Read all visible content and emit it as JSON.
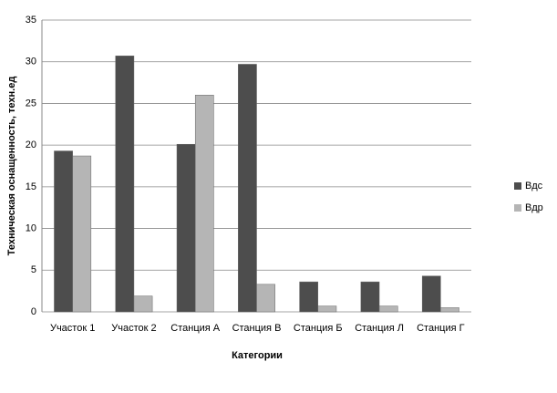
{
  "chart_data": {
    "type": "bar",
    "x_label": "Категории",
    "y_label": "Техническая оснащенность, техн.ед",
    "categories": [
      "Участок 1",
      "Участок 2",
      "Станция А",
      "Станция В",
      "Станция Б",
      "Станция Л",
      "Станция Г"
    ],
    "series": [
      {
        "name": "Вдс",
        "color": "#4d4d4d",
        "values": [
          19.3,
          30.7,
          20.1,
          29.7,
          3.6,
          3.6,
          4.3
        ]
      },
      {
        "name": "Вдр",
        "color": "#b5b5b5",
        "values": [
          18.7,
          1.9,
          26.0,
          3.3,
          0.7,
          0.7,
          0.5
        ]
      }
    ],
    "ylim": [
      0,
      35
    ],
    "yticks": [
      0,
      5,
      10,
      15,
      20,
      25,
      30,
      35
    ],
    "grid": true,
    "legend": "right"
  }
}
